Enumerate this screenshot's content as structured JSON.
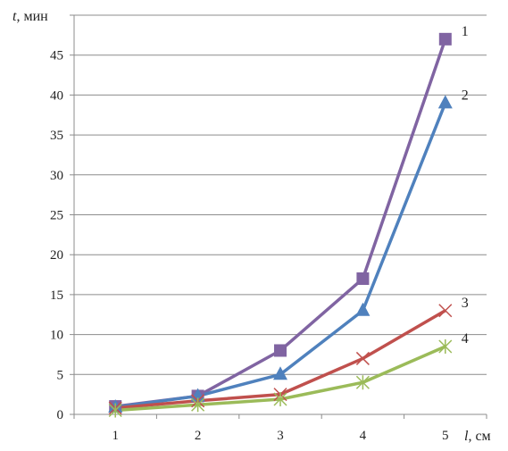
{
  "chart_data": {
    "type": "line",
    "ylabel_var": "t",
    "ylabel_unit": ", мин",
    "xlabel_var": "l",
    "xlabel_unit": ", см",
    "x": [
      1,
      2,
      3,
      4,
      5
    ],
    "xlim": [
      0.5,
      5.5
    ],
    "ylim": [
      0,
      50
    ],
    "yticks": [
      0,
      5,
      10,
      15,
      20,
      25,
      30,
      35,
      40,
      45,
      50
    ],
    "ytick_labels": [
      "0",
      "5",
      "10",
      "15",
      "20",
      "25",
      "30",
      "35",
      "40",
      "45",
      ""
    ],
    "xtick_labels": [
      "1",
      "2",
      "3",
      "4",
      "5"
    ],
    "grid": true,
    "series": [
      {
        "label": "1",
        "color": "#8064a2",
        "marker": "square",
        "values": [
          1.0,
          2.3,
          8.0,
          17.0,
          47.0
        ]
      },
      {
        "label": "2",
        "color": "#4f81bd",
        "marker": "triangle",
        "values": [
          0.9,
          2.3,
          5.0,
          13.0,
          39.0
        ]
      },
      {
        "label": "3",
        "color": "#c0504d",
        "marker": "x",
        "values": [
          0.8,
          1.7,
          2.5,
          7.0,
          13.0
        ]
      },
      {
        "label": "4",
        "color": "#9bbb59",
        "marker": "star",
        "values": [
          0.5,
          1.2,
          1.9,
          4.0,
          8.5
        ]
      }
    ]
  }
}
